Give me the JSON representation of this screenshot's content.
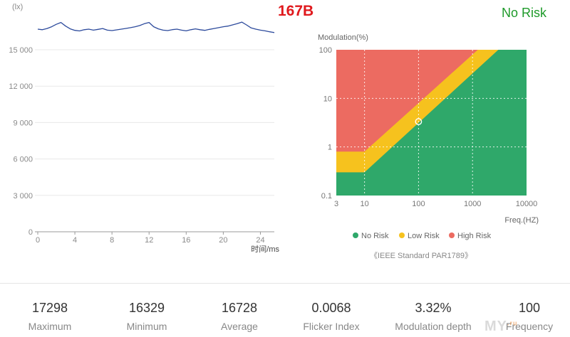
{
  "header": {
    "model_label": "167B",
    "risk_label": "No Risk",
    "colors": {
      "red": "#e0191d",
      "green": "#1e9a2a"
    }
  },
  "chart_data": [
    {
      "type": "line",
      "ylabel": "(lx)",
      "xlabel": "时间/ms",
      "xlim": [
        0,
        25.5
      ],
      "ylim": [
        0,
        15000
      ],
      "x_ticks": [
        "0",
        "4",
        "8",
        "12",
        "16",
        "20",
        "24"
      ],
      "y_ticks": [
        "0",
        "3 000",
        "6 000",
        "9 000",
        "12 000",
        "15 000"
      ],
      "grid": true,
      "line_color": "#2c4a9c",
      "series": [
        {
          "x": [
            0,
            0.5,
            1,
            1.5,
            2,
            2.5,
            3,
            3.5,
            4,
            4.5,
            5,
            5.5,
            6,
            6.5,
            7,
            7.5,
            8,
            8.5,
            9,
            9.5,
            10,
            10.5,
            11,
            11.5,
            12,
            12.5,
            13,
            13.5,
            14,
            14.5,
            15,
            15.5,
            16,
            16.5,
            17,
            17.5,
            18,
            18.5,
            19,
            19.5,
            20,
            20.5,
            21,
            21.5,
            22,
            22.5,
            23,
            23.5,
            24,
            24.5,
            25,
            25.5
          ],
          "values": [
            16700,
            16650,
            16750,
            16900,
            17100,
            17250,
            16950,
            16720,
            16600,
            16550,
            16650,
            16700,
            16620,
            16680,
            16750,
            16620,
            16580,
            16640,
            16700,
            16760,
            16820,
            16900,
            17000,
            17150,
            17250,
            16900,
            16720,
            16620,
            16580,
            16660,
            16700,
            16620,
            16560,
            16650,
            16720,
            16650,
            16600,
            16680,
            16750,
            16820,
            16900,
            16950,
            17050,
            17150,
            17280,
            17050,
            16800,
            16700,
            16620,
            16560,
            16480,
            16420
          ]
        }
      ]
    },
    {
      "type": "area",
      "ylabel": "Modulation(%)",
      "xlabel": "Freq.(HZ)",
      "x_scale": "log",
      "y_scale": "log",
      "xlim": [
        3,
        10000
      ],
      "ylim": [
        0.1,
        100
      ],
      "x_ticks": [
        "3",
        "10",
        "100",
        "1000",
        "10000"
      ],
      "y_ticks": [
        "0.1",
        "1",
        "10",
        "100"
      ],
      "grid": true,
      "regions": [
        {
          "name": "No Risk",
          "color": "#2fa86a"
        },
        {
          "name": "Low Risk",
          "color": "#f6c21e"
        },
        {
          "name": "High Risk",
          "color": "#ec6b61"
        }
      ],
      "point": {
        "x": 100,
        "y": 3.32
      },
      "legend": [
        "No Risk",
        "Low Risk",
        "High Risk"
      ],
      "legend_position": "bottom",
      "footnote": "《IEEE Standard PAR1789》"
    }
  ],
  "stats": [
    {
      "value": "17298",
      "label": "Maximum"
    },
    {
      "value": "16329",
      "label": "Minimum"
    },
    {
      "value": "16728",
      "label": "Average"
    },
    {
      "value": "0.0068",
      "label": "Flicker Index"
    },
    {
      "value": "3.32%",
      "label": "Modulation depth"
    },
    {
      "value": "100",
      "label": "Frequency"
    }
  ],
  "watermark": {
    "text": "MY",
    "small": ".ru"
  }
}
